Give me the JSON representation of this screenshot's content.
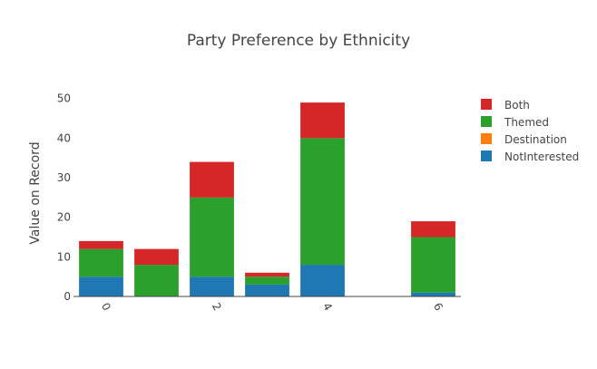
{
  "chart_data": {
    "type": "bar",
    "stacked": true,
    "title": "Party Preference by Ethnicity",
    "xlabel": "",
    "ylabel": "Value on Record",
    "x": [
      0,
      1,
      2,
      3,
      4,
      5,
      6
    ],
    "x_tick_labels": [
      "0",
      "2",
      "4",
      "6"
    ],
    "x_tick_values": [
      0,
      2,
      4,
      6
    ],
    "ylim": [
      0,
      52
    ],
    "y_ticks": [
      0,
      10,
      20,
      30,
      40,
      50
    ],
    "grid": false,
    "legend_position": "top-right",
    "series": [
      {
        "name": "NotInterested",
        "color": "#1f77b4",
        "values": [
          5,
          0,
          5,
          3,
          8,
          0,
          1
        ]
      },
      {
        "name": "Destination",
        "color": "#ff7f0e",
        "values": [
          0,
          0,
          0,
          0,
          0,
          0,
          0
        ]
      },
      {
        "name": "Themed",
        "color": "#2ca02c",
        "values": [
          7,
          8,
          20,
          2,
          32,
          0,
          14
        ]
      },
      {
        "name": "Both",
        "color": "#d62728",
        "values": [
          2,
          4,
          9,
          1,
          9,
          0,
          4
        ]
      }
    ],
    "legend_order": [
      "Both",
      "Themed",
      "Destination",
      "NotInterested"
    ]
  }
}
